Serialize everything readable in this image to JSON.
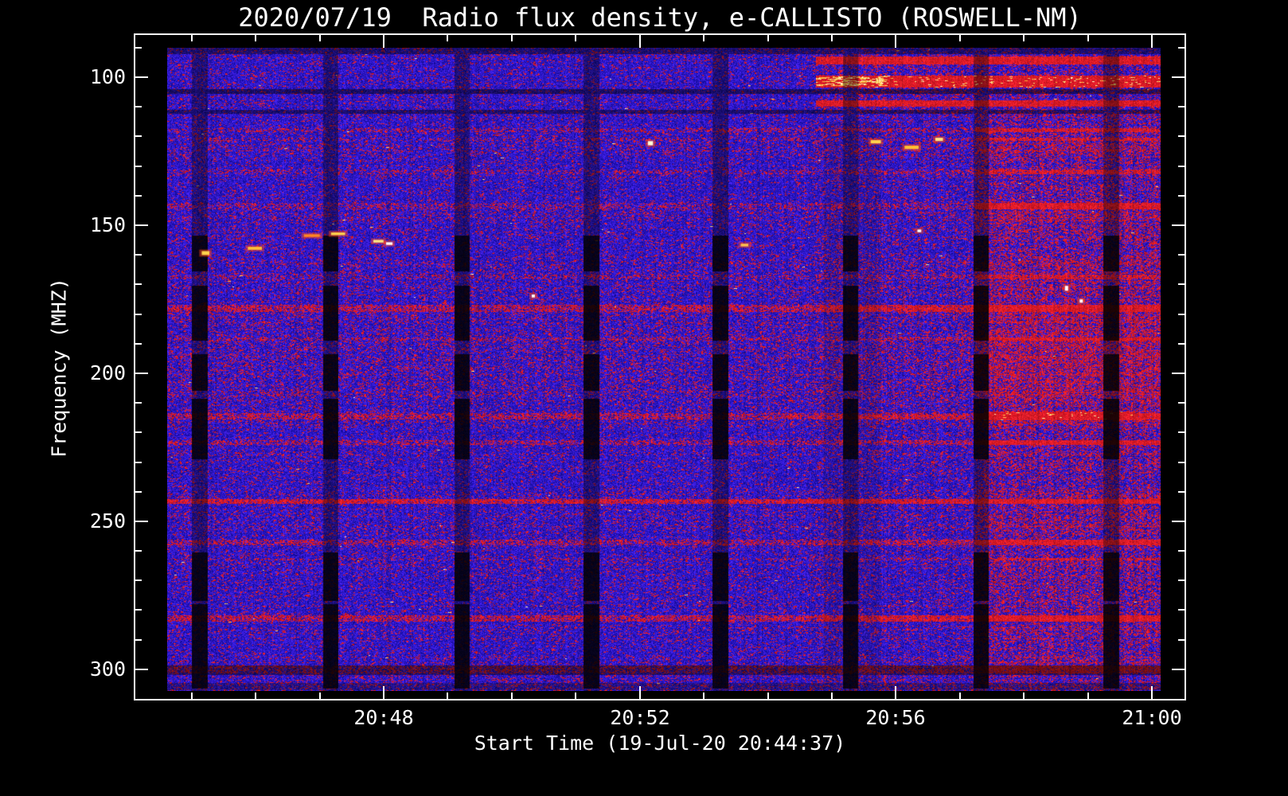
{
  "figure": {
    "background": "#000000",
    "frame_color": "#ffffff",
    "text_color": "#ffffff"
  },
  "chart_data": {
    "type": "heatmap",
    "title": "2020/07/19  Radio flux density, e-CALLISTO (ROSWELL-NM)",
    "xlabel": "Start Time (19-Jul-20 20:44:37)",
    "ylabel": "Frequency (MHZ)",
    "station": "ROSWELL-NM",
    "date": "2020/07/19",
    "start_time": "20:44:37",
    "x_axis": {
      "unit": "UT time",
      "duration_min": 15.52,
      "minor_step_min": 1,
      "ticks": [
        {
          "label": "20:48",
          "t": 3.383
        },
        {
          "label": "20:52",
          "t": 7.383
        },
        {
          "label": "20:56",
          "t": 11.383
        },
        {
          "label": "21:00",
          "t": 15.383
        }
      ]
    },
    "y_axis": {
      "unit": "MHz",
      "inverted": true,
      "range": [
        90.0,
        307.3
      ],
      "minor_step": 10,
      "ticks": [
        {
          "label": "100",
          "f": 100
        },
        {
          "label": "150",
          "f": 150
        },
        {
          "label": "200",
          "f": 200
        },
        {
          "label": "250",
          "f": 250
        },
        {
          "label": "300",
          "f": 300
        }
      ]
    },
    "colormap": {
      "low": "#2d1ee0",
      "mid": "#d01818",
      "high": "#ffee66",
      "gaps": "#000000"
    },
    "features": {
      "h_bands": [
        {
          "f1": 90.0,
          "f2": 92.3,
          "type": "dark",
          "alpha": 0.5,
          "t1": 0,
          "t2": 15.52
        },
        {
          "f1": 93.0,
          "f2": 95.8,
          "type": "red",
          "boost": 0.65,
          "t1": 10.13,
          "t2": 15.52
        },
        {
          "f1": 99.4,
          "f2": 103.4,
          "type": "red",
          "boost": 0.9,
          "bright": 0.08,
          "t1": 10.13,
          "t2": 15.52
        },
        {
          "f1": 99.8,
          "f2": 103.0,
          "type": "red",
          "boost": 0.3,
          "bright": 0.3,
          "t1": 10.13,
          "t2": 11.15
        },
        {
          "f1": 103.9,
          "f2": 105.6,
          "type": "dark",
          "alpha": 0.55,
          "t1": 0,
          "t2": 15.52
        },
        {
          "f1": 107.8,
          "f2": 110.0,
          "type": "red",
          "boost": 0.55,
          "t1": 10.13,
          "t2": 15.52
        },
        {
          "f1": 110.9,
          "f2": 112.5,
          "type": "dark",
          "alpha": 0.5,
          "t1": 0,
          "t2": 15.52
        },
        {
          "f1": 117.3,
          "f2": 118.5,
          "type": "red",
          "boost": 0.15,
          "t1": 0,
          "t2": 15.52
        },
        {
          "f1": 120.3,
          "f2": 121.6,
          "type": "red",
          "boost": 0.1,
          "t1": 0,
          "t2": 15.52
        },
        {
          "f1": 131.2,
          "f2": 132.8,
          "type": "red",
          "boost": 0.12,
          "t1": 0,
          "t2": 15.52
        },
        {
          "f1": 142.4,
          "f2": 144.6,
          "type": "red",
          "boost": 0.12,
          "t1": 0,
          "t2": 12.62
        },
        {
          "f1": 142.4,
          "f2": 144.6,
          "type": "red",
          "boost": 0.8,
          "t1": 12.62,
          "t2": 15.52
        },
        {
          "f1": 166.8,
          "f2": 168.3,
          "type": "red",
          "boost": 0.12,
          "t1": 0,
          "t2": 15.52
        },
        {
          "f1": 176.9,
          "f2": 179.2,
          "type": "red",
          "boost": 0.35,
          "t1": 0,
          "t2": 15.52
        },
        {
          "f1": 176.9,
          "f2": 179.2,
          "type": "red",
          "boost": 0.45,
          "t1": 12.62,
          "t2": 15.52
        },
        {
          "f1": 187.9,
          "f2": 189.1,
          "type": "red",
          "boost": 0.15,
          "t1": 0,
          "t2": 15.52
        },
        {
          "f1": 213.4,
          "f2": 215.7,
          "type": "red",
          "boost": 0.3,
          "t1": 0,
          "t2": 15.52
        },
        {
          "f1": 213.0,
          "f2": 216.0,
          "type": "red",
          "boost": 0.85,
          "bright": 0.05,
          "t1": 12.75,
          "t2": 15.1
        },
        {
          "f1": 222.5,
          "f2": 224.3,
          "type": "red",
          "boost": 0.25,
          "t1": 0,
          "t2": 15.52
        },
        {
          "f1": 242.4,
          "f2": 244.0,
          "type": "red",
          "boost": 0.5,
          "t1": 0,
          "t2": 15.52
        },
        {
          "f1": 256.2,
          "f2": 258.2,
          "type": "red",
          "boost": 0.28,
          "t1": 0,
          "t2": 15.52
        },
        {
          "f1": 262.3,
          "f2": 263.3,
          "type": "red",
          "boost": 0.1,
          "t1": 0,
          "t2": 15.52
        },
        {
          "f1": 281.7,
          "f2": 284.0,
          "type": "red",
          "boost": 0.4,
          "t1": 0,
          "t2": 15.52
        },
        {
          "f1": 281.7,
          "f2": 284.0,
          "type": "red",
          "boost": 0.45,
          "t1": 12.62,
          "t2": 15.52
        },
        {
          "f1": 298.6,
          "f2": 301.8,
          "type": "dark",
          "alpha": 0.5,
          "t1": 0,
          "t2": 15.52
        },
        {
          "f1": 298.8,
          "f2": 301.5,
          "type": "red",
          "boost": 0.25,
          "t1": 0,
          "t2": 15.52
        },
        {
          "f1": 304.7,
          "f2": 307.0,
          "type": "dark",
          "alpha": 0.35,
          "t1": 0,
          "t2": 15.52
        }
      ],
      "v_gaps": {
        "times_min": [
          0.5,
          2.55,
          4.6,
          6.62,
          8.64,
          10.67,
          12.71,
          14.74
        ],
        "width_min": 0.22,
        "alpha": 0.38,
        "blob_alpha": 0.86,
        "blob_bands": [
          [
            153.5,
            165.5
          ],
          [
            170.5,
            189.0
          ],
          [
            193.5,
            206.0
          ],
          [
            208.5,
            229.0
          ],
          [
            260.5,
            277.0
          ],
          [
            278.0,
            306.5
          ]
        ]
      },
      "regions": [
        {
          "t1": 12.62,
          "t2": 15.52,
          "f1": 112.5,
          "f2": 298.5,
          "red_mult": 3.4
        },
        {
          "t1": 12.62,
          "t2": 15.52,
          "f1": 298.5,
          "f2": 307.3,
          "red_mult": 2.0
        },
        {
          "t1": 10.13,
          "t2": 12.62,
          "f1": 112.5,
          "f2": 307.3,
          "red_mult": 1.3
        },
        {
          "t1": 10.13,
          "t2": 15.52,
          "f1": 92.5,
          "f2": 112.5,
          "red_mult": 2.6
        },
        {
          "t1": 10.25,
          "t2": 11.15,
          "f1": 115.0,
          "f2": 307.3,
          "dark": 0.13
        }
      ],
      "bright_spots": [
        {
          "t": 0.6,
          "f": 159.4,
          "w": 0.12,
          "h": 1.3,
          "color": "#ffd34d"
        },
        {
          "t": 1.37,
          "f": 157.8,
          "w": 0.22,
          "h": 1.0,
          "color": "#ffc233"
        },
        {
          "t": 2.26,
          "f": 153.5,
          "w": 0.25,
          "h": 0.9,
          "color": "#ff8822"
        },
        {
          "t": 2.67,
          "f": 152.9,
          "w": 0.22,
          "h": 0.9,
          "color": "#ffd34d"
        },
        {
          "t": 3.3,
          "f": 155.4,
          "w": 0.16,
          "h": 0.9,
          "color": "#ffe680"
        },
        {
          "t": 3.47,
          "f": 156.2,
          "w": 0.1,
          "h": 0.9,
          "color": "#ffffff"
        },
        {
          "t": 5.72,
          "f": 173.9,
          "w": 0.05,
          "h": 1.0,
          "color": "#ffffff"
        },
        {
          "t": 7.55,
          "f": 122.3,
          "w": 0.08,
          "h": 1.4,
          "color": "#ffffd9"
        },
        {
          "t": 9.02,
          "f": 156.7,
          "w": 0.12,
          "h": 0.9,
          "color": "#ffc24d"
        },
        {
          "t": 11.07,
          "f": 121.8,
          "w": 0.16,
          "h": 1.1,
          "color": "#ffd34d"
        },
        {
          "t": 11.63,
          "f": 123.7,
          "w": 0.22,
          "h": 1.1,
          "color": "#ffc233"
        },
        {
          "t": 12.06,
          "f": 121.0,
          "w": 0.12,
          "h": 1.1,
          "color": "#ffe680"
        },
        {
          "t": 11.75,
          "f": 151.9,
          "w": 0.06,
          "h": 0.9,
          "color": "#ffffff"
        },
        {
          "t": 14.05,
          "f": 171.3,
          "w": 0.05,
          "h": 1.6,
          "color": "#ffffff"
        },
        {
          "t": 14.28,
          "f": 175.6,
          "w": 0.05,
          "h": 1.1,
          "color": "#ffffff"
        }
      ]
    }
  }
}
